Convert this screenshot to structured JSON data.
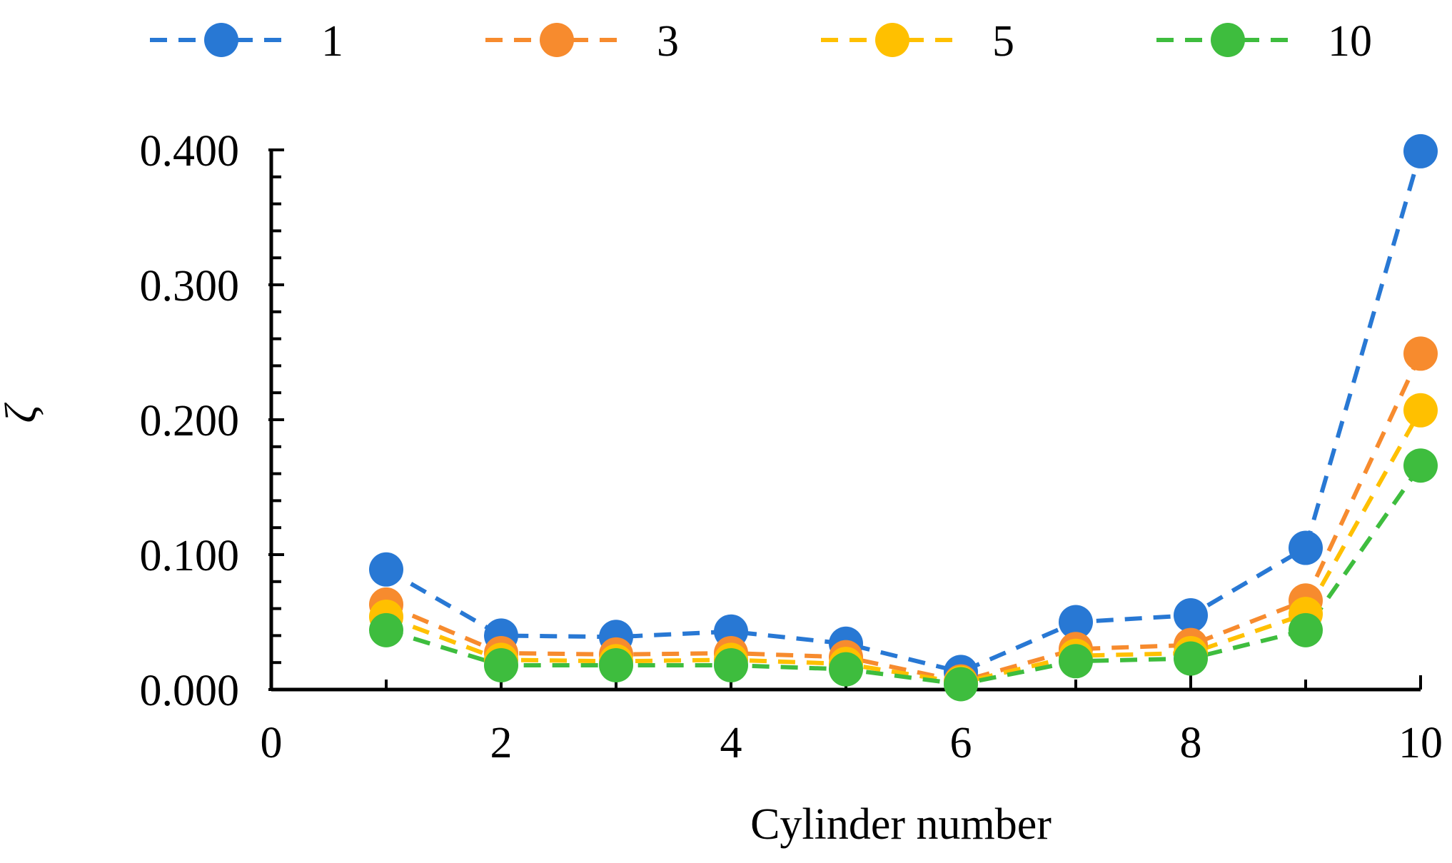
{
  "chart_data": {
    "type": "line",
    "title": "",
    "xlabel": "Cylinder number",
    "ylabel": "ζ",
    "xlim": [
      0,
      10
    ],
    "ylim": [
      0,
      0.4
    ],
    "xticks": [
      0,
      2,
      4,
      6,
      8,
      10
    ],
    "xtick_labels": [
      "0",
      "2",
      "4",
      "6",
      "8",
      "10"
    ],
    "yticks": [
      0,
      0.1,
      0.2,
      0.3,
      0.4
    ],
    "ytick_labels": [
      "0.000",
      "0.100",
      "0.200",
      "0.300",
      "0.400"
    ],
    "grid": false,
    "legend_position": "top",
    "x": [
      1,
      2,
      3,
      4,
      5,
      6,
      7,
      8,
      9,
      10
    ],
    "series": [
      {
        "name": "1",
        "color": "#2878d4",
        "values": [
          0.089,
          0.04,
          0.039,
          0.043,
          0.034,
          0.013,
          0.05,
          0.055,
          0.105,
          0.399
        ]
      },
      {
        "name": "3",
        "color": "#f78b2e",
        "values": [
          0.063,
          0.027,
          0.026,
          0.027,
          0.024,
          0.006,
          0.03,
          0.033,
          0.066,
          0.249
        ]
      },
      {
        "name": "5",
        "color": "#ffc000",
        "values": [
          0.054,
          0.022,
          0.021,
          0.022,
          0.019,
          0.005,
          0.025,
          0.027,
          0.056,
          0.207
        ]
      },
      {
        "name": "10",
        "color": "#3ebd3e",
        "values": [
          0.044,
          0.018,
          0.018,
          0.018,
          0.015,
          0.004,
          0.021,
          0.023,
          0.044,
          0.166
        ]
      }
    ]
  }
}
